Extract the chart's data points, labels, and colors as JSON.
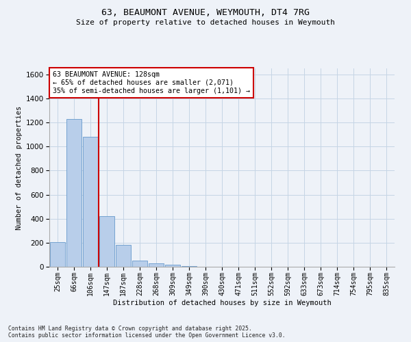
{
  "title1": "63, BEAUMONT AVENUE, WEYMOUTH, DT4 7RG",
  "title2": "Size of property relative to detached houses in Weymouth",
  "xlabel": "Distribution of detached houses by size in Weymouth",
  "ylabel": "Number of detached properties",
  "categories": [
    "25sqm",
    "66sqm",
    "106sqm",
    "147sqm",
    "187sqm",
    "228sqm",
    "268sqm",
    "309sqm",
    "349sqm",
    "390sqm",
    "430sqm",
    "471sqm",
    "511sqm",
    "552sqm",
    "592sqm",
    "633sqm",
    "673sqm",
    "714sqm",
    "754sqm",
    "795sqm",
    "835sqm"
  ],
  "values": [
    205,
    1230,
    1080,
    420,
    180,
    50,
    28,
    18,
    8,
    0,
    0,
    0,
    0,
    0,
    0,
    0,
    0,
    0,
    0,
    0,
    0
  ],
  "bar_color": "#b8ceea",
  "bar_edge_color": "#6699cc",
  "grid_color": "#c5d5e5",
  "background_color": "#eef2f8",
  "vline_x": 2.5,
  "vline_color": "#cc0000",
  "annotation_text": "63 BEAUMONT AVENUE: 128sqm\n← 65% of detached houses are smaller (2,071)\n35% of semi-detached houses are larger (1,101) →",
  "annotation_box_facecolor": "#ffffff",
  "annotation_box_edgecolor": "#cc0000",
  "ylim": [
    0,
    1650
  ],
  "yticks": [
    0,
    200,
    400,
    600,
    800,
    1000,
    1200,
    1400,
    1600
  ],
  "footnote": "Contains HM Land Registry data © Crown copyright and database right 2025.\nContains public sector information licensed under the Open Government Licence v3.0."
}
